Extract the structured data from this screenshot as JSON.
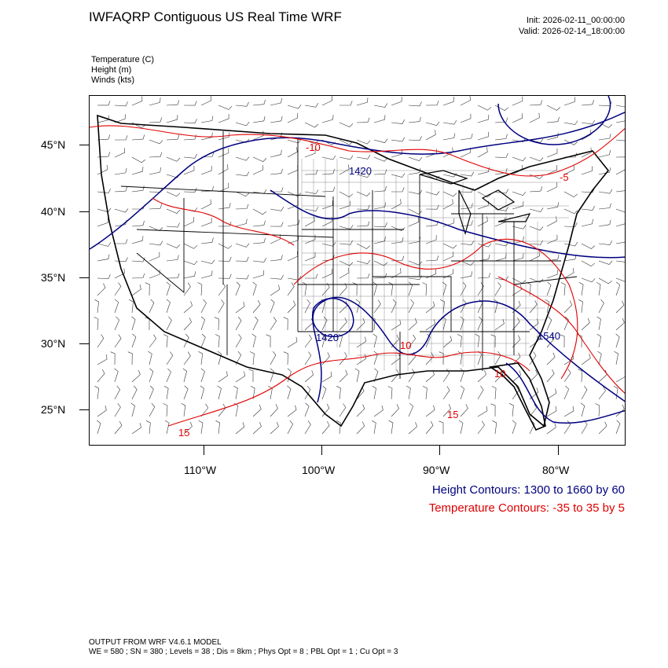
{
  "header": {
    "title": "IWFAQRP Contiguous US Real Time WRF",
    "init": "Init: 2026-02-11_00:00:00",
    "valid": "Valid: 2026-02-14_18:00:00"
  },
  "fields": [
    {
      "label": "Temperature   (C)"
    },
    {
      "label": "Height   (m)"
    },
    {
      "label": "Winds   (kts)"
    }
  ],
  "map": {
    "lat_labels": [
      "45°N",
      "40°N",
      "35°N",
      "30°N",
      "25°N"
    ],
    "lon_labels": [
      "110°W",
      "100°W",
      "90°W",
      "80°W"
    ],
    "contour_labels": {
      "height_1420": "1420",
      "height_1540": "1540",
      "height_1420_tx": "1420",
      "temp_n10": "-10",
      "temp_10": "10",
      "temp_10_fl": "10",
      "temp_n5": "-5",
      "temp_15": "15",
      "temp_15_sw": "15"
    },
    "colors": {
      "height": "#000080",
      "temperature": "#e00000",
      "boundaries": "#000000",
      "barbs": "#333333"
    }
  },
  "legend": {
    "height": "Height Contours: 1300 to 1660 by 60",
    "temperature": "Temperature Contours: -35 to 35 by 5"
  },
  "footer": {
    "line1": "OUTPUT FROM WRF V4.6.1 MODEL",
    "line2": "WE = 580 ; SN = 380 ; Levels = 38 ; Dis = 8km ; Phys Opt = 8 ; PBL Opt = 1 ; Cu Opt = 3"
  }
}
